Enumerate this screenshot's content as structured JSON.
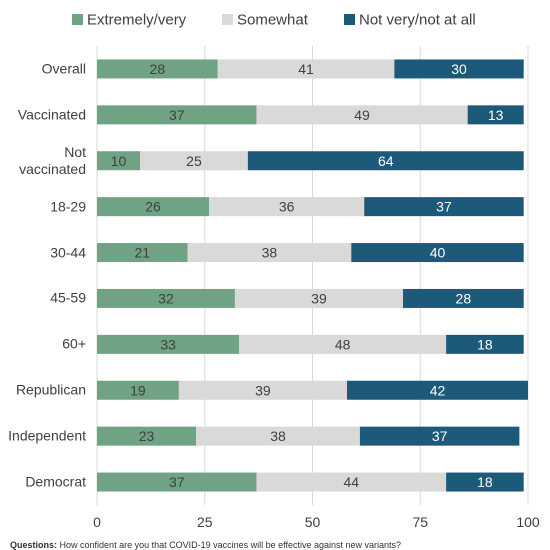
{
  "chart_data": {
    "type": "stacked-bar-horizontal",
    "categories": [
      "Overall",
      "Vaccinated",
      "Not vaccinated",
      "18-29",
      "30-44",
      "45-59",
      "60+",
      "Republican",
      "Independent",
      "Democrat"
    ],
    "series": [
      {
        "name": "Extremely/very",
        "color": "#6fa383",
        "values": [
          28,
          37,
          10,
          26,
          21,
          32,
          33,
          19,
          23,
          37
        ]
      },
      {
        "name": "Somewhat",
        "color": "#d9d9d9",
        "values": [
          41,
          49,
          25,
          36,
          38,
          39,
          48,
          39,
          38,
          44
        ]
      },
      {
        "name": "Not very/not at all",
        "color": "#1d5a7a",
        "values": [
          30,
          13,
          64,
          37,
          40,
          28,
          18,
          42,
          37,
          18
        ]
      }
    ],
    "xlim": [
      0,
      100
    ],
    "xticks": [
      0,
      25,
      50,
      75,
      100
    ],
    "grid": true,
    "legend": "top",
    "footer": {
      "label": "Questions:",
      "text": "How confident are you that COVID-19 vaccines will be effective against new variants?"
    }
  }
}
